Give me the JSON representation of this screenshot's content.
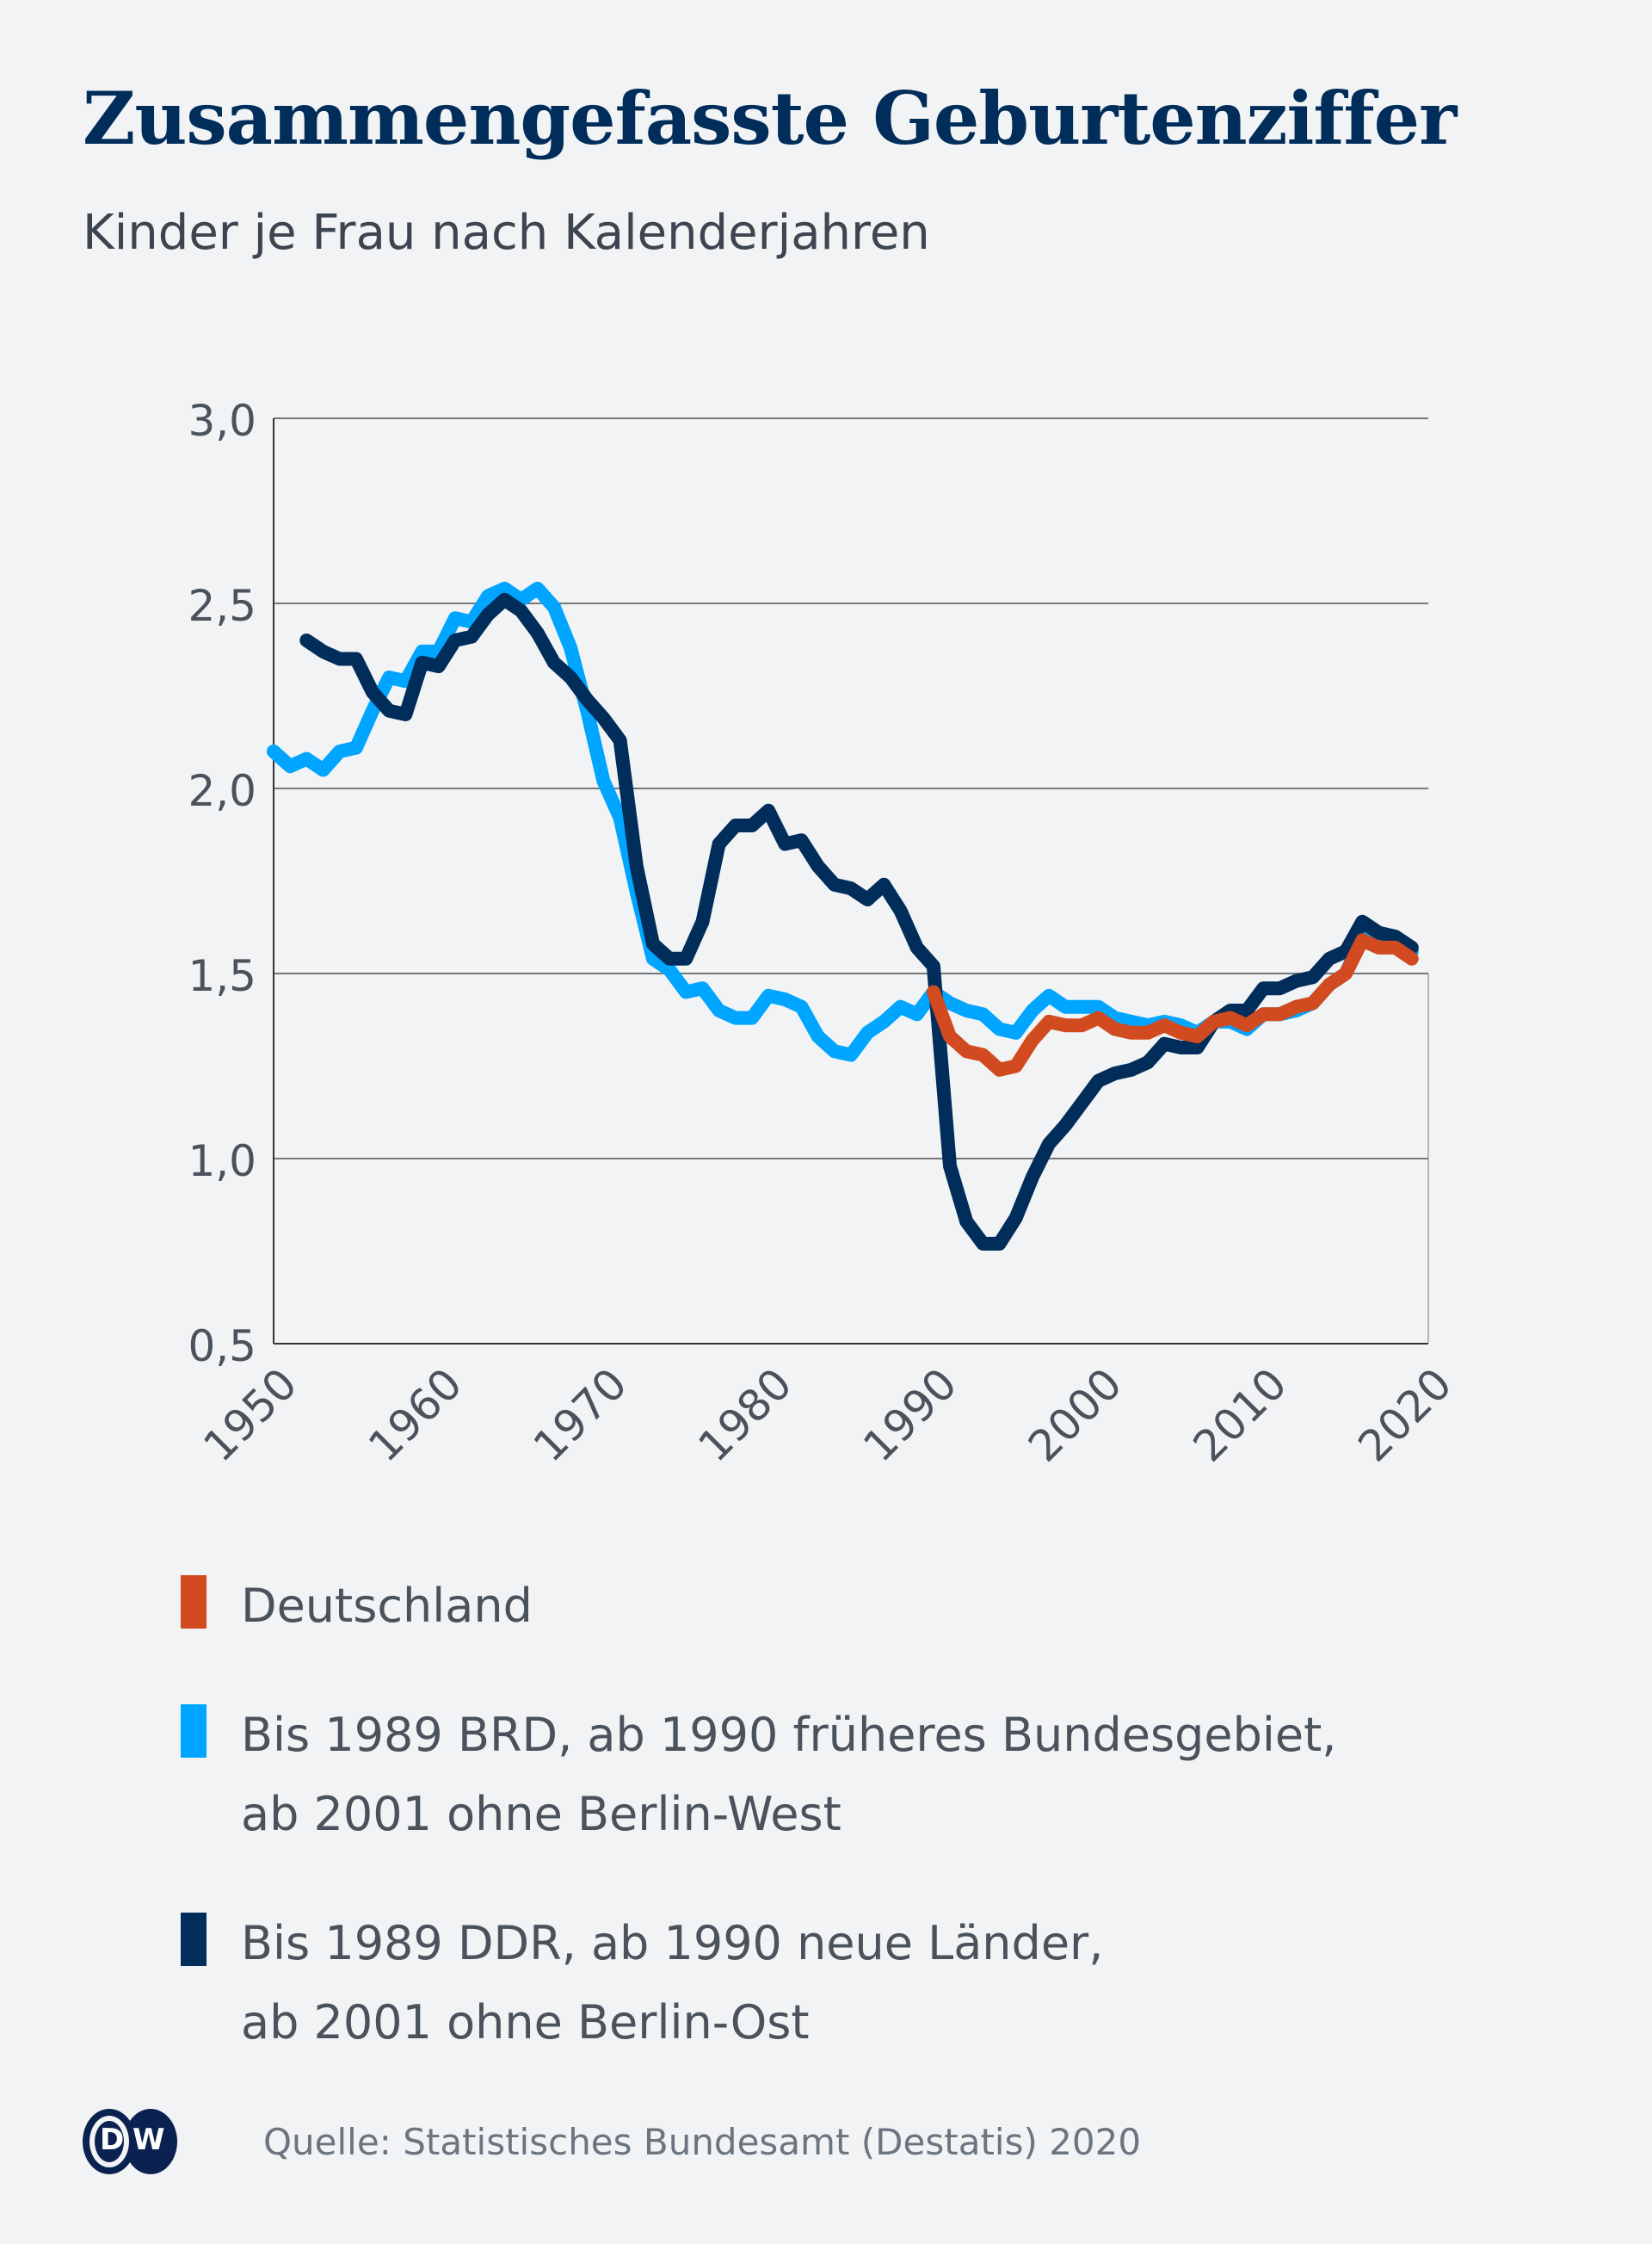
{
  "header": {
    "title": "Zusammengefasste Geburtenziffer",
    "subtitle": "Kinder je Frau nach Kalenderjahren"
  },
  "legend": [
    {
      "lines": [
        "Deutschland"
      ],
      "color": "#d14a20"
    },
    {
      "lines": [
        "Bis 1989 BRD, ab 1990 früheres Bundesgebiet,",
        "ab 2001 ohne Berlin-West"
      ],
      "color": "#00a5ff"
    },
    {
      "lines": [
        "Bis 1989 DDR, ab 1990 neue Länder,",
        "ab 2001 ohne Berlin-Ost"
      ],
      "color": "#002d5a"
    }
  ],
  "footer": {
    "logo_text_d": "D",
    "logo_text_w": "W",
    "source": "Quelle: Statistisches Bundesamt (Destatis) 2020"
  },
  "chart_data": {
    "type": "line",
    "title": "Zusammengefasste Geburtenziffer",
    "subtitle": "Kinder je Frau nach Kalenderjahren",
    "xlabel": "",
    "ylabel": "",
    "xlim": [
      1950,
      2020
    ],
    "ylim": [
      0.5,
      3.0
    ],
    "x_ticks": [
      1950,
      1960,
      1970,
      1980,
      1990,
      2000,
      2010,
      2020
    ],
    "y_ticks": [
      0.5,
      1.0,
      1.5,
      2.0,
      2.5,
      3.0
    ],
    "y_tick_labels": [
      "0,5",
      "1,0",
      "1,5",
      "2,0",
      "2,5",
      "3,0"
    ],
    "grid": "horizontal",
    "legend_position": "bottom",
    "series": [
      {
        "name": "Bis 1989 BRD, ab 1990 früheres Bundesgebiet, ab 2001 ohne Berlin-West",
        "color": "#00a5ff",
        "start_year": 1950,
        "values": [
          2.1,
          2.06,
          2.08,
          2.05,
          2.1,
          2.11,
          2.21,
          2.3,
          2.29,
          2.37,
          2.37,
          2.46,
          2.45,
          2.52,
          2.54,
          2.51,
          2.54,
          2.49,
          2.38,
          2.21,
          2.02,
          1.92,
          1.72,
          1.54,
          1.51,
          1.45,
          1.46,
          1.4,
          1.38,
          1.38,
          1.44,
          1.43,
          1.41,
          1.33,
          1.29,
          1.28,
          1.34,
          1.37,
          1.41,
          1.39,
          1.45,
          1.42,
          1.4,
          1.39,
          1.35,
          1.34,
          1.4,
          1.44,
          1.41,
          1.41,
          1.41,
          1.38,
          1.37,
          1.36,
          1.37,
          1.36,
          1.34,
          1.37,
          1.37,
          1.35,
          1.39,
          1.39,
          1.4,
          1.42,
          1.47,
          1.5,
          1.6,
          1.58,
          1.58,
          1.56
        ]
      },
      {
        "name": "Bis 1989 DDR, ab 1990 neue Länder, ab 2001 ohne Berlin-Ost",
        "color": "#002d5a",
        "start_year": 1952,
        "values": [
          2.4,
          2.37,
          2.35,
          2.35,
          2.26,
          2.21,
          2.2,
          2.34,
          2.33,
          2.4,
          2.41,
          2.47,
          2.51,
          2.48,
          2.42,
          2.34,
          2.3,
          2.24,
          2.19,
          2.13,
          1.79,
          1.58,
          1.54,
          1.54,
          1.64,
          1.85,
          1.9,
          1.9,
          1.94,
          1.85,
          1.86,
          1.79,
          1.74,
          1.73,
          1.7,
          1.74,
          1.67,
          1.57,
          1.52,
          0.98,
          0.83,
          0.77,
          0.77,
          0.84,
          0.95,
          1.04,
          1.09,
          1.15,
          1.21,
          1.23,
          1.24,
          1.26,
          1.31,
          1.3,
          1.3,
          1.37,
          1.4,
          1.4,
          1.46,
          1.46,
          1.48,
          1.49,
          1.54,
          1.56,
          1.64,
          1.61,
          1.6,
          1.57
        ]
      },
      {
        "name": "Deutschland",
        "color": "#d14a20",
        "start_year": 1990,
        "values": [
          1.45,
          1.33,
          1.29,
          1.28,
          1.24,
          1.25,
          1.32,
          1.37,
          1.36,
          1.36,
          1.38,
          1.35,
          1.34,
          1.34,
          1.36,
          1.34,
          1.33,
          1.37,
          1.38,
          1.36,
          1.39,
          1.39,
          1.41,
          1.42,
          1.47,
          1.5,
          1.59,
          1.57,
          1.57,
          1.54
        ]
      }
    ]
  }
}
